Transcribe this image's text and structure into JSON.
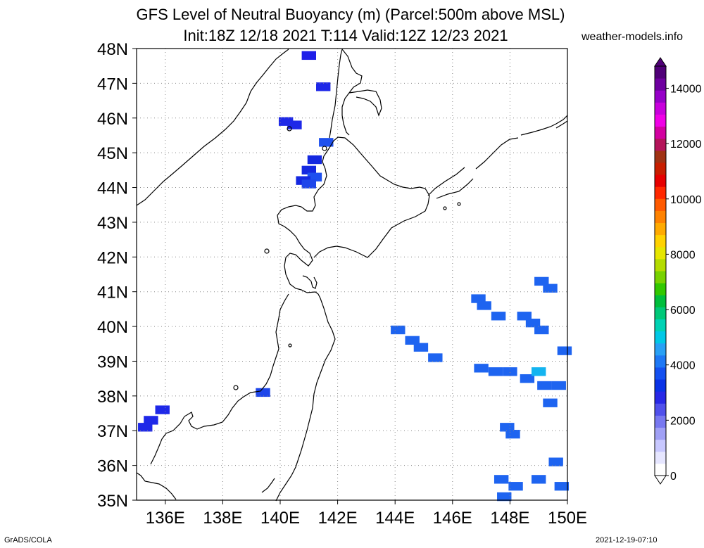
{
  "header": {
    "title_line1": "GFS Level of Neutral Buoyancy (m) (Parcel:500m above MSL)",
    "title_line2": "Init:18Z 12/18 2021 T:114 Valid:12Z 12/23 2021",
    "site": "weather-models.info"
  },
  "footer": {
    "left": "GrADS/COLA",
    "right": "2021-12-19-07:10"
  },
  "map": {
    "lon_labels": [
      "136E",
      "138E",
      "140E",
      "142E",
      "144E",
      "146E",
      "148E",
      "150E"
    ],
    "lat_labels": [
      "35N",
      "36N",
      "37N",
      "38N",
      "39N",
      "40N",
      "41N",
      "42N",
      "43N",
      "44N",
      "45N",
      "46N",
      "47N",
      "48N"
    ],
    "lon_range": [
      135,
      150
    ],
    "lat_range": [
      35,
      48
    ],
    "grid": "dotted",
    "coastline_color": "#000000"
  },
  "colorbar": {
    "labels": [
      "0",
      "2000",
      "4000",
      "6000",
      "8000",
      "10000",
      "12000",
      "14000"
    ],
    "colors": [
      "#ffffff",
      "#e6e6ff",
      "#c8c8ff",
      "#a0a0f5",
      "#7878f0",
      "#5050eb",
      "#2828e6",
      "#0a32e6",
      "#1450f0",
      "#1e78f5",
      "#28a0f5",
      "#00c8e6",
      "#00d2b4",
      "#00c878",
      "#00be3c",
      "#32c800",
      "#78d200",
      "#b4dc00",
      "#e6e600",
      "#ffd200",
      "#ffaa00",
      "#ff8200",
      "#ff5a00",
      "#ff2800",
      "#e60000",
      "#c81e00",
      "#a03214",
      "#b4145a",
      "#d200a0",
      "#f000e6",
      "#c800dc",
      "#9600c8",
      "#6e00a0",
      "#500078"
    ]
  },
  "lnb_cells": [
    {
      "lon": 141.0,
      "lat": 47.8,
      "color": "#1e1ee8"
    },
    {
      "lon": 141.5,
      "lat": 46.9,
      "color": "#1e28e8"
    },
    {
      "lon": 140.2,
      "lat": 45.9,
      "color": "#1e28e8"
    },
    {
      "lon": 140.5,
      "lat": 45.8,
      "color": "#1e28e8"
    },
    {
      "lon": 141.6,
      "lat": 45.3,
      "color": "#1e50ee"
    },
    {
      "lon": 141.2,
      "lat": 44.8,
      "color": "#1428e0"
    },
    {
      "lon": 141.0,
      "lat": 44.5,
      "color": "#1428e0"
    },
    {
      "lon": 141.2,
      "lat": 44.3,
      "color": "#1e50ee"
    },
    {
      "lon": 140.8,
      "lat": 44.2,
      "color": "#1428e0"
    },
    {
      "lon": 141.0,
      "lat": 44.1,
      "color": "#1e46ea"
    },
    {
      "lon": 139.4,
      "lat": 38.1,
      "color": "#1e46ea"
    },
    {
      "lon": 135.9,
      "lat": 37.6,
      "color": "#1e28e8"
    },
    {
      "lon": 135.5,
      "lat": 37.3,
      "color": "#1e28e8"
    },
    {
      "lon": 135.3,
      "lat": 37.1,
      "color": "#1e28e8"
    },
    {
      "lon": 144.1,
      "lat": 39.9,
      "color": "#1e64f0"
    },
    {
      "lon": 144.6,
      "lat": 39.6,
      "color": "#1e64f0"
    },
    {
      "lon": 144.9,
      "lat": 39.4,
      "color": "#1e64f0"
    },
    {
      "lon": 145.4,
      "lat": 39.1,
      "color": "#1e64f0"
    },
    {
      "lon": 146.9,
      "lat": 40.8,
      "color": "#1e64f0"
    },
    {
      "lon": 147.1,
      "lat": 40.6,
      "color": "#1e64f0"
    },
    {
      "lon": 147.6,
      "lat": 40.3,
      "color": "#1e64f0"
    },
    {
      "lon": 148.5,
      "lat": 40.3,
      "color": "#1e64f0"
    },
    {
      "lon": 148.8,
      "lat": 40.1,
      "color": "#1e64f0"
    },
    {
      "lon": 149.1,
      "lat": 39.9,
      "color": "#1e64f0"
    },
    {
      "lon": 149.1,
      "lat": 41.3,
      "color": "#1e64f0"
    },
    {
      "lon": 149.4,
      "lat": 41.1,
      "color": "#1e64f0"
    },
    {
      "lon": 149.9,
      "lat": 39.3,
      "color": "#1e64f0"
    },
    {
      "lon": 147.0,
      "lat": 38.8,
      "color": "#1e64f0"
    },
    {
      "lon": 147.5,
      "lat": 38.7,
      "color": "#1e64f0"
    },
    {
      "lon": 148.0,
      "lat": 38.7,
      "color": "#1e64f0"
    },
    {
      "lon": 148.6,
      "lat": 38.5,
      "color": "#1e64f0"
    },
    {
      "lon": 149.0,
      "lat": 38.7,
      "color": "#14b4f0"
    },
    {
      "lon": 149.2,
      "lat": 38.3,
      "color": "#1e64f0"
    },
    {
      "lon": 149.7,
      "lat": 38.3,
      "color": "#1e64f0"
    },
    {
      "lon": 149.4,
      "lat": 37.8,
      "color": "#1e64f0"
    },
    {
      "lon": 147.9,
      "lat": 37.1,
      "color": "#1e64f0"
    },
    {
      "lon": 148.1,
      "lat": 36.9,
      "color": "#1e64f0"
    },
    {
      "lon": 147.7,
      "lat": 35.6,
      "color": "#1e64f0"
    },
    {
      "lon": 148.2,
      "lat": 35.4,
      "color": "#1e64f0"
    },
    {
      "lon": 149.0,
      "lat": 35.6,
      "color": "#1e64f0"
    },
    {
      "lon": 149.6,
      "lat": 36.1,
      "color": "#1e64f0"
    },
    {
      "lon": 149.8,
      "lat": 35.4,
      "color": "#1e64f0"
    },
    {
      "lon": 147.8,
      "lat": 35.1,
      "color": "#1e64f0"
    }
  ]
}
